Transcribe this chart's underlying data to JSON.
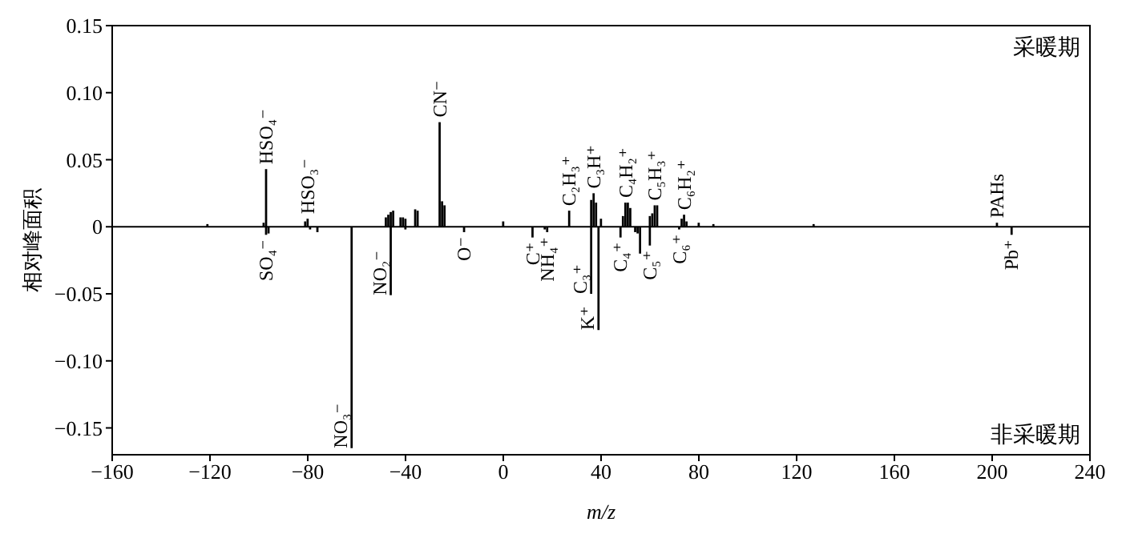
{
  "chart_data": {
    "type": "bar",
    "xlabel": "m/z",
    "ylabel": "相对峰面积",
    "xlim": [
      -160,
      240
    ],
    "xticks": [
      {
        "value": -160,
        "label": "−160"
      },
      {
        "value": -120,
        "label": "−120"
      },
      {
        "value": -80,
        "label": "−80"
      },
      {
        "value": -40,
        "label": "−40"
      },
      0,
      40,
      80,
      120,
      160,
      200,
      240
    ],
    "ylim": [
      -0.17,
      0.15
    ],
    "yticks": [
      {
        "value": -0.15,
        "label": "−0.15"
      },
      {
        "value": -0.1,
        "label": "−0.10"
      },
      {
        "value": -0.05,
        "label": "−0.05"
      },
      0,
      {
        "value": 0.05,
        "label": "0.05"
      },
      {
        "value": 0.1,
        "label": "0.10"
      },
      {
        "value": 0.15,
        "label": "0.15"
      }
    ],
    "grid": false,
    "legend": false,
    "ref_lines": [
      {
        "axis": "y",
        "value": 0,
        "color": "#000000"
      }
    ],
    "series": [
      {
        "name": "采暖期",
        "color": "#000000",
        "x": [
          -121,
          -98,
          -97,
          -81,
          -80,
          -48,
          -47,
          -46,
          -45,
          -42,
          -41,
          -40,
          -36,
          -35,
          -26,
          -25,
          -24,
          0,
          27,
          36,
          37,
          38,
          40,
          49,
          50,
          51,
          52,
          60,
          61,
          62,
          63,
          73,
          74,
          75,
          80,
          86,
          127,
          202
        ],
        "values": [
          0.002,
          0.003,
          0.043,
          0.004,
          0.006,
          0.007,
          0.009,
          0.011,
          0.012,
          0.007,
          0.007,
          0.006,
          0.013,
          0.012,
          0.078,
          0.019,
          0.016,
          0.004,
          0.012,
          0.02,
          0.025,
          0.018,
          0.006,
          0.008,
          0.018,
          0.018,
          0.014,
          0.008,
          0.01,
          0.016,
          0.016,
          0.006,
          0.009,
          0.004,
          0.003,
          0.002,
          0.002,
          0.003
        ]
      },
      {
        "name": "非采暖期",
        "color": "#000000",
        "x": [
          -97,
          -96,
          -79,
          -76,
          -62,
          -46,
          -40,
          -16,
          12,
          17,
          18,
          36,
          39,
          48,
          54,
          55,
          56,
          60,
          72,
          208
        ],
        "values": [
          -0.006,
          -0.005,
          -0.002,
          -0.004,
          -0.165,
          -0.051,
          -0.002,
          -0.004,
          -0.008,
          -0.002,
          -0.004,
          -0.05,
          -0.077,
          -0.008,
          -0.004,
          -0.005,
          -0.02,
          -0.014,
          -0.002,
          -0.006
        ]
      }
    ],
    "annotations": [
      {
        "text": "HSO₄⁻",
        "x": -97,
        "y": 0.043
      },
      {
        "text": "HSO₃⁻",
        "x": -80,
        "y": 0.006
      },
      {
        "text": "CN⁻",
        "x": -26,
        "y": 0.078
      },
      {
        "text": "C₂H₃⁺",
        "x": 27,
        "y": 0.012
      },
      {
        "text": "C₃H⁺",
        "x": 37,
        "y": 0.025
      },
      {
        "text": "C₄H₂⁺",
        "x": 50,
        "y": 0.018
      },
      {
        "text": "C₅H₃⁺",
        "x": 62,
        "y": 0.016
      },
      {
        "text": "C₆H₂⁺",
        "x": 74,
        "y": 0.009
      },
      {
        "text": "PAHs",
        "x": 202,
        "y": 0.003
      },
      {
        "text": "SO₄⁻",
        "x": -97,
        "y": -0.006
      },
      {
        "text": "NO₃⁻",
        "x": -62,
        "y": -0.165
      },
      {
        "text": "NO₂⁻",
        "x": -46,
        "y": -0.051
      },
      {
        "text": "O⁻",
        "x": -16,
        "y": -0.004
      },
      {
        "text": "C⁺",
        "x": 12,
        "y": -0.008
      },
      {
        "text": "NH₄⁺",
        "x": 18,
        "y": -0.004
      },
      {
        "text": "C₃⁺",
        "x": 36,
        "y": -0.05
      },
      {
        "text": "K⁺",
        "x": 39,
        "y": -0.077
      },
      {
        "text": "C₄⁺",
        "x": 48,
        "y": -0.008
      },
      {
        "text": "C₅⁺",
        "x": 60,
        "y": -0.014
      },
      {
        "text": "C₆⁺",
        "x": 72,
        "y": -0.002
      },
      {
        "text": "Pb⁺",
        "x": 208,
        "y": -0.006
      }
    ]
  }
}
